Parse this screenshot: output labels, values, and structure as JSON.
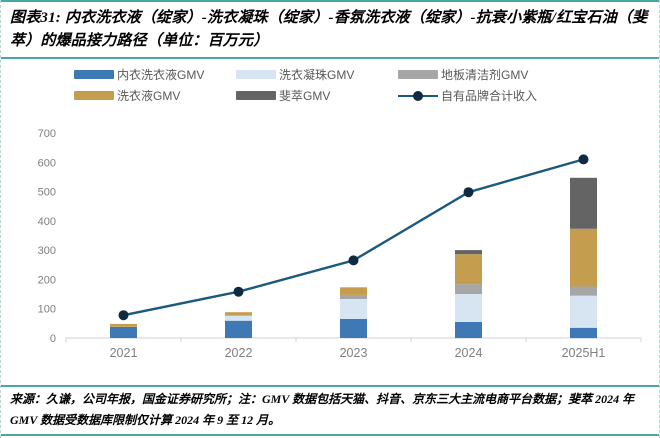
{
  "figure": {
    "title": "图表31: 内衣洗衣液（绽家）-洗衣凝珠（绽家）-香氛洗衣液（绽家）-抗衰小紫瓶/红宝石油（斐萃）的爆品接力路径（单位：百万元）",
    "footer": "来源：久谦，公司年报，国金证券研究所；注：GMV 数据包括天猫、抖音、京东三大主流电商平台数据；斐萃 2024 年 GMV 数据受数据库限制仅计算 2024 年 9 至 12 月。",
    "accent_rule_color": "#46a9a3"
  },
  "chart_data": {
    "type": "bar",
    "subtype": "stacked_bar_with_line",
    "title": "内衣洗衣液-洗衣凝珠-香氛洗衣液-抗衰小紫瓶/红宝石油的爆品接力路径",
    "unit": "百万元",
    "categories": [
      "2021",
      "2022",
      "2023",
      "2024",
      "2025H1"
    ],
    "series": [
      {
        "name": "内衣洗衣液GMV",
        "color": "#3E79B6",
        "values": [
          38,
          59,
          65,
          55,
          35
        ]
      },
      {
        "name": "洗衣凝珠GMV",
        "color": "#D7E4F1",
        "values": [
          0,
          17,
          68,
          95,
          110
        ]
      },
      {
        "name": "地板清洁剂GMV",
        "color": "#A6A6A6",
        "values": [
          0,
          0,
          14,
          34,
          31
        ]
      },
      {
        "name": "洗衣液GMV",
        "color": "#C59D4F",
        "values": [
          10,
          12,
          26,
          102,
          197
        ]
      },
      {
        "name": "斐萃GMV",
        "color": "#646464",
        "values": [
          0,
          0,
          0,
          14,
          174
        ]
      }
    ],
    "line_series": {
      "name": "自有品牌合计收入",
      "color": "#1B5A7D",
      "marker_color": "#0E2B42",
      "values": [
        78,
        158,
        265,
        498,
        610
      ]
    },
    "ylim": [
      0,
      700
    ],
    "ytick_step": 100,
    "axis_color": "#D9D9D9",
    "tick_label_color": "#7f7f7f",
    "legend_position": "top",
    "grid": false
  }
}
